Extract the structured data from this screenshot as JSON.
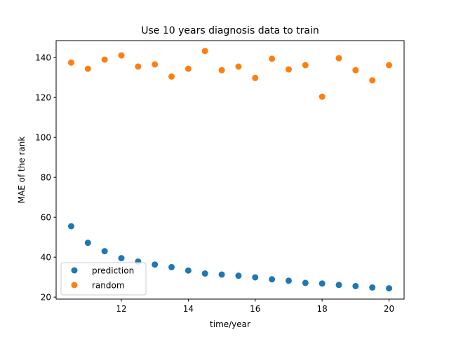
{
  "chart_data": {
    "type": "scatter",
    "title": "Use 10 years diagnosis data to train",
    "xlabel": "time/year",
    "ylabel": "MAE of the rank",
    "xlim": [
      10.05,
      20.45
    ],
    "ylim": [
      19.0,
      148.5
    ],
    "x_ticks": [
      12,
      14,
      16,
      18,
      20
    ],
    "y_ticks": [
      20,
      40,
      60,
      80,
      100,
      120,
      140
    ],
    "grid": false,
    "legend_position": "lower-left",
    "x": [
      10.5,
      11.0,
      11.5,
      12.0,
      12.5,
      13.0,
      13.5,
      14.0,
      14.5,
      15.0,
      15.5,
      16.0,
      16.5,
      17.0,
      17.5,
      18.0,
      18.5,
      19.0,
      19.5,
      20.0
    ],
    "series": [
      {
        "name": "prediction",
        "color": "#1f77b4",
        "values": [
          55.5,
          47.2,
          43.0,
          39.5,
          37.8,
          36.3,
          35.0,
          33.3,
          31.8,
          31.3,
          30.7,
          29.9,
          28.9,
          28.2,
          27.1,
          26.8,
          26.1,
          25.5,
          24.8,
          24.4
        ]
      },
      {
        "name": "random",
        "color": "#ff7f0e",
        "values": [
          137.5,
          134.4,
          139.0,
          141.1,
          135.5,
          136.6,
          130.5,
          134.4,
          143.3,
          133.7,
          135.5,
          129.8,
          139.4,
          134.1,
          136.2,
          120.4,
          139.7,
          133.7,
          128.6,
          136.2
        ]
      }
    ]
  }
}
